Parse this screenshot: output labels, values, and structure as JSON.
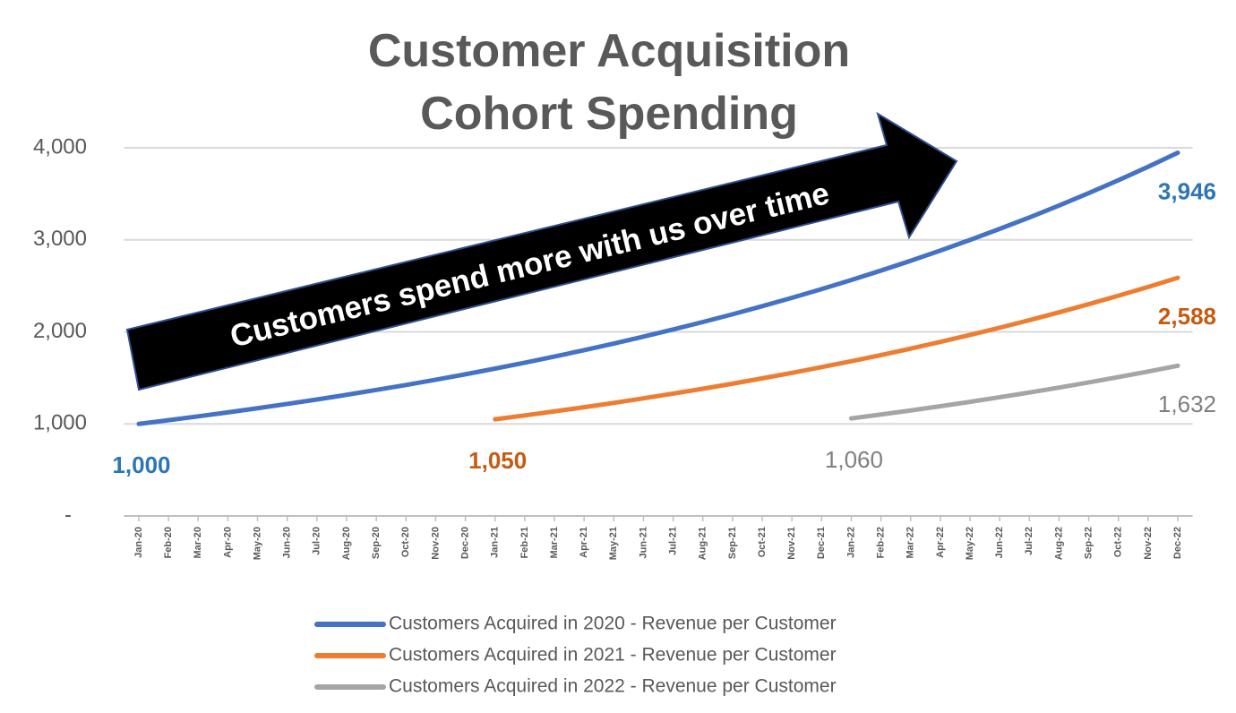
{
  "chart_data": {
    "type": "line",
    "title": "Customer Acquisition Cohort Spending",
    "annotation": "Customers spend more with us over time",
    "categories": [
      "Jan-20",
      "Feb-20",
      "Mar-20",
      "Apr-20",
      "May-20",
      "Jun-20",
      "Jul-20",
      "Aug-20",
      "Sep-20",
      "Oct-20",
      "Nov-20",
      "Dec-20",
      "Jan-21",
      "Feb-21",
      "Mar-21",
      "Apr-21",
      "May-21",
      "Jun-21",
      "Jul-21",
      "Aug-21",
      "Sep-21",
      "Oct-21",
      "Nov-21",
      "Dec-21",
      "Jan-22",
      "Feb-22",
      "Mar-22",
      "Apr-22",
      "May-22",
      "Jun-22",
      "Jul-22",
      "Aug-22",
      "Sep-22",
      "Oct-22",
      "Nov-22",
      "Dec-22"
    ],
    "series": [
      {
        "name": "Customers Acquired in 2020 - Revenue per Customer",
        "color": "#4472c4",
        "label_color": "#2e75b6",
        "values": [
          1000,
          1040,
          1082,
          1125,
          1170,
          1217,
          1265,
          1316,
          1369,
          1423,
          1480,
          1539,
          1601,
          1665,
          1732,
          1801,
          1873,
          1948,
          2026,
          2107,
          2191,
          2279,
          2370,
          2465,
          2563,
          2666,
          2772,
          2883,
          2999,
          3119,
          3243,
          3373,
          3508,
          3648,
          3794,
          3946
        ],
        "value_labels": [
          "1,000",
          null,
          null,
          null,
          null,
          null,
          null,
          null,
          null,
          null,
          null,
          null,
          null,
          null,
          null,
          null,
          null,
          null,
          null,
          null,
          null,
          null,
          null,
          null,
          null,
          null,
          null,
          null,
          null,
          null,
          null,
          null,
          null,
          null,
          null,
          "3,946"
        ]
      },
      {
        "name": "Customers Acquired in 2021 - Revenue per Customer",
        "color": "#ed7d31",
        "label_color": "#c55a11",
        "values": [
          null,
          null,
          null,
          null,
          null,
          null,
          null,
          null,
          null,
          null,
          null,
          null,
          1050,
          1092,
          1136,
          1181,
          1228,
          1278,
          1329,
          1382,
          1437,
          1495,
          1554,
          1617,
          1681,
          1748,
          1818,
          1891,
          1967,
          2045,
          2127,
          2212,
          2301,
          2393,
          2488,
          2588
        ],
        "value_labels": [
          null,
          null,
          null,
          null,
          null,
          null,
          null,
          null,
          null,
          null,
          null,
          null,
          "1,050",
          null,
          null,
          null,
          null,
          null,
          null,
          null,
          null,
          null,
          null,
          null,
          null,
          null,
          null,
          null,
          null,
          null,
          null,
          null,
          null,
          null,
          null,
          "2,588"
        ]
      },
      {
        "name": "Customers Acquired in 2022 - Revenue per Customer",
        "color": "#a5a5a5",
        "label_color": "#7f7f7f",
        "values": [
          null,
          null,
          null,
          null,
          null,
          null,
          null,
          null,
          null,
          null,
          null,
          null,
          null,
          null,
          null,
          null,
          null,
          null,
          null,
          null,
          null,
          null,
          null,
          null,
          1060,
          1102,
          1146,
          1192,
          1240,
          1290,
          1341,
          1395,
          1451,
          1509,
          1569,
          1632
        ],
        "value_labels": [
          null,
          null,
          null,
          null,
          null,
          null,
          null,
          null,
          null,
          null,
          null,
          null,
          null,
          null,
          null,
          null,
          null,
          null,
          null,
          null,
          null,
          null,
          null,
          null,
          "1,060",
          null,
          null,
          null,
          null,
          null,
          null,
          null,
          null,
          null,
          null,
          "1,632"
        ]
      }
    ],
    "ylim": [
      0,
      4000
    ],
    "yticks": [
      {
        "value": 0,
        "label": "-"
      },
      {
        "value": 1000,
        "label": "1,000"
      },
      {
        "value": 2000,
        "label": "2,000"
      },
      {
        "value": 3000,
        "label": "3,000"
      },
      {
        "value": 4000,
        "label": "4,000"
      }
    ],
    "grid": true,
    "legend": "bottom"
  }
}
